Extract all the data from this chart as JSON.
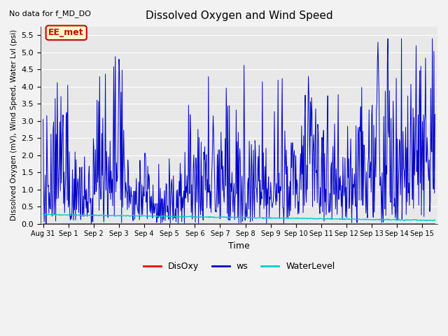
{
  "title": "Dissolved Oxygen and Wind Speed",
  "top_left_note": "No data for f_MD_DO",
  "annotation_box": "EE_met",
  "xlabel": "Time",
  "ylabel": "Dissolved Oxygen (mV), Wind Speed, Water Lvl (psi)",
  "ylim": [
    0.0,
    5.75
  ],
  "yticks": [
    0.0,
    0.5,
    1.0,
    1.5,
    2.0,
    2.5,
    3.0,
    3.5,
    4.0,
    4.5,
    5.0,
    5.5
  ],
  "xtick_labels": [
    "Aug 31",
    "Sep 1",
    "Sep 2",
    "Sep 3",
    "Sep 4",
    "Sep 5",
    "Sep 6",
    "Sep 7",
    "Sep 8",
    "Sep 9",
    "Sep 10",
    "Sep 11",
    "Sep 12",
    "Sep 13",
    "Sep 14",
    "Sep 15"
  ],
  "legend_labels": [
    "DisOxy",
    "ws",
    "WaterLevel"
  ],
  "legend_colors": [
    "#ff0000",
    "#0000cc",
    "#00cccc"
  ],
  "disoxy_color": "#ff0000",
  "ws_color": "#0000cc",
  "water_color": "#00cccc",
  "plot_bg_color": "#e8e8e8",
  "fig_bg_color": "#f2f2f2",
  "grid_color": "#ffffff",
  "annotation_box_facecolor": "#ffffcc",
  "annotation_box_edgecolor": "#cc0000",
  "annotation_text_color": "#cc0000"
}
